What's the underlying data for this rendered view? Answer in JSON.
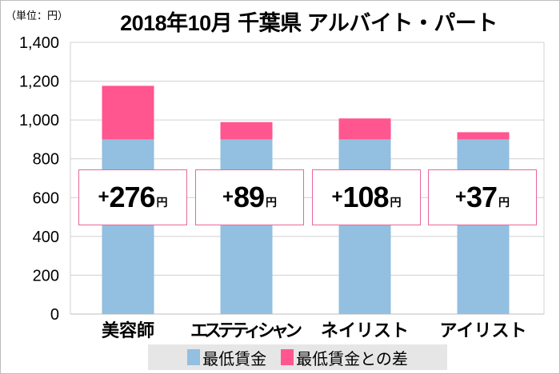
{
  "unit_label": "（単位：円）",
  "colors": {
    "base": "#93bfe0",
    "diff": "#ff5690",
    "box_border": "#e8679b"
  },
  "chart_data": {
    "type": "bar",
    "stacked": true,
    "title": "2018年10月 千葉県 アルバイト・パート",
    "ylabel": "（単位：円）",
    "categories": [
      "美容師",
      "エステティシャン",
      "ネイリスト",
      "アイリスト"
    ],
    "series": [
      {
        "name": "最低賃金",
        "values": [
          900,
          900,
          900,
          900
        ]
      },
      {
        "name": "最低賃金との差",
        "values": [
          276,
          89,
          108,
          37
        ]
      }
    ],
    "ylim": [
      0,
      1400
    ],
    "yticks": [
      "0",
      "200",
      "400",
      "600",
      "800",
      "1,000",
      "1,200",
      "1,400"
    ],
    "grid": true,
    "legend": "bottom",
    "annotations": [
      {
        "plus": "+",
        "value": "276",
        "unit": "円"
      },
      {
        "plus": "+",
        "value": "89",
        "unit": "円"
      },
      {
        "plus": "+",
        "value": "108",
        "unit": "円"
      },
      {
        "plus": "+",
        "value": "37",
        "unit": "円"
      }
    ]
  }
}
